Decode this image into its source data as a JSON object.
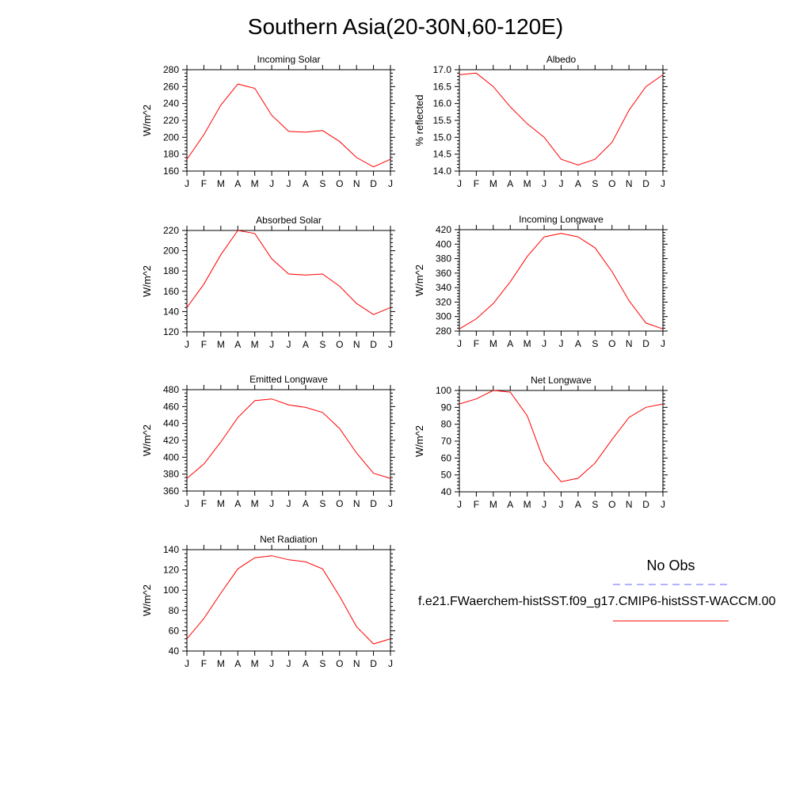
{
  "figure": {
    "title": "Southern Asia(20-30N,60-120E)",
    "line_color": "#ff0000",
    "obs_line_color": "#6666ff"
  },
  "legend": {
    "no_obs_label": "No Obs",
    "run_label": "f.e21.FWaerchem-histSST.f09_g17.CMIP6-histSST-WACCM.00"
  },
  "chart_data": [
    {
      "type": "line",
      "title": "Incoming Solar",
      "ylabel": "W/m^2",
      "categories": [
        "J",
        "F",
        "M",
        "A",
        "M",
        "J",
        "J",
        "A",
        "S",
        "O",
        "N",
        "D",
        "J"
      ],
      "ylim": [
        160,
        280
      ],
      "yticks": [
        160,
        180,
        200,
        220,
        240,
        260,
        280
      ],
      "yticklabels": [
        "160",
        "180",
        "200",
        "220",
        "240",
        "260",
        "280"
      ],
      "series": [
        {
          "values": [
            174,
            203,
            238,
            263,
            258,
            226,
            207,
            206,
            208,
            195,
            176,
            165,
            174
          ]
        }
      ]
    },
    {
      "type": "line",
      "title": "Albedo",
      "ylabel": "% reflected",
      "categories": [
        "J",
        "F",
        "M",
        "A",
        "M",
        "J",
        "J",
        "A",
        "S",
        "O",
        "N",
        "D",
        "J"
      ],
      "ylim": [
        14.0,
        17.0
      ],
      "yticks": [
        14.0,
        14.5,
        15.0,
        15.5,
        16.0,
        16.5,
        17.0
      ],
      "yticklabels": [
        "14.0",
        "14.5",
        "15.0",
        "15.5",
        "16.0",
        "16.5",
        "17.0"
      ],
      "series": [
        {
          "values": [
            16.85,
            16.9,
            16.5,
            15.9,
            15.4,
            15.0,
            14.35,
            14.18,
            14.35,
            14.85,
            15.8,
            16.5,
            16.85
          ]
        }
      ]
    },
    {
      "type": "line",
      "title": "Absorbed Solar",
      "ylabel": "W/m^2",
      "categories": [
        "J",
        "F",
        "M",
        "A",
        "M",
        "J",
        "J",
        "A",
        "S",
        "O",
        "N",
        "D",
        "J"
      ],
      "ylim": [
        120,
        220
      ],
      "yticks": [
        120,
        140,
        160,
        180,
        200,
        220
      ],
      "yticklabels": [
        "120",
        "140",
        "160",
        "180",
        "200",
        "220"
      ],
      "series": [
        {
          "values": [
            144,
            167,
            196,
            220,
            217,
            192,
            177,
            176,
            177,
            165,
            148,
            137,
            144
          ]
        }
      ]
    },
    {
      "type": "line",
      "title": "Incoming Longwave",
      "ylabel": "W/m^2",
      "categories": [
        "J",
        "F",
        "M",
        "A",
        "M",
        "J",
        "J",
        "A",
        "S",
        "O",
        "N",
        "D",
        "J"
      ],
      "ylim": [
        280,
        420
      ],
      "yticks": [
        280,
        300,
        320,
        340,
        360,
        380,
        400,
        420
      ],
      "yticklabels": [
        "280",
        "300",
        "320",
        "340",
        "360",
        "380",
        "400",
        "420"
      ],
      "series": [
        {
          "values": [
            283,
            297,
            318,
            348,
            383,
            410,
            415,
            410,
            395,
            362,
            322,
            291,
            283
          ]
        }
      ]
    },
    {
      "type": "line",
      "title": "Emitted Longwave",
      "ylabel": "W/m^2",
      "categories": [
        "J",
        "F",
        "M",
        "A",
        "M",
        "J",
        "J",
        "A",
        "S",
        "O",
        "N",
        "D",
        "J"
      ],
      "ylim": [
        360,
        480
      ],
      "yticks": [
        360,
        380,
        400,
        420,
        440,
        460,
        480
      ],
      "yticklabels": [
        "360",
        "380",
        "400",
        "420",
        "440",
        "460",
        "480"
      ],
      "series": [
        {
          "values": [
            375,
            392,
            418,
            447,
            467,
            469,
            462,
            459,
            453,
            434,
            405,
            381,
            375
          ]
        }
      ]
    },
    {
      "type": "line",
      "title": "Net Longwave",
      "ylabel": "W/m^2",
      "categories": [
        "J",
        "F",
        "M",
        "A",
        "M",
        "J",
        "J",
        "A",
        "S",
        "O",
        "N",
        "D",
        "J"
      ],
      "ylim": [
        40,
        100
      ],
      "yticks": [
        40,
        50,
        60,
        70,
        80,
        90,
        100
      ],
      "yticklabels": [
        "40",
        "50",
        "60",
        "70",
        "80",
        "90",
        "100"
      ],
      "series": [
        {
          "values": [
            92,
            95,
            100,
            99,
            85,
            58,
            46,
            48,
            57,
            71,
            84,
            90,
            92
          ]
        }
      ]
    },
    {
      "type": "line",
      "title": "Net Radiation",
      "ylabel": "W/m^2",
      "categories": [
        "J",
        "F",
        "M",
        "A",
        "M",
        "J",
        "J",
        "A",
        "S",
        "O",
        "N",
        "D",
        "J"
      ],
      "ylim": [
        40,
        140
      ],
      "yticks": [
        40,
        60,
        80,
        100,
        120,
        140
      ],
      "yticklabels": [
        "40",
        "60",
        "80",
        "100",
        "120",
        "140"
      ],
      "series": [
        {
          "values": [
            52,
            72,
            97,
            121,
            132,
            134,
            130,
            128,
            121,
            94,
            64,
            47,
            52
          ]
        }
      ]
    }
  ]
}
